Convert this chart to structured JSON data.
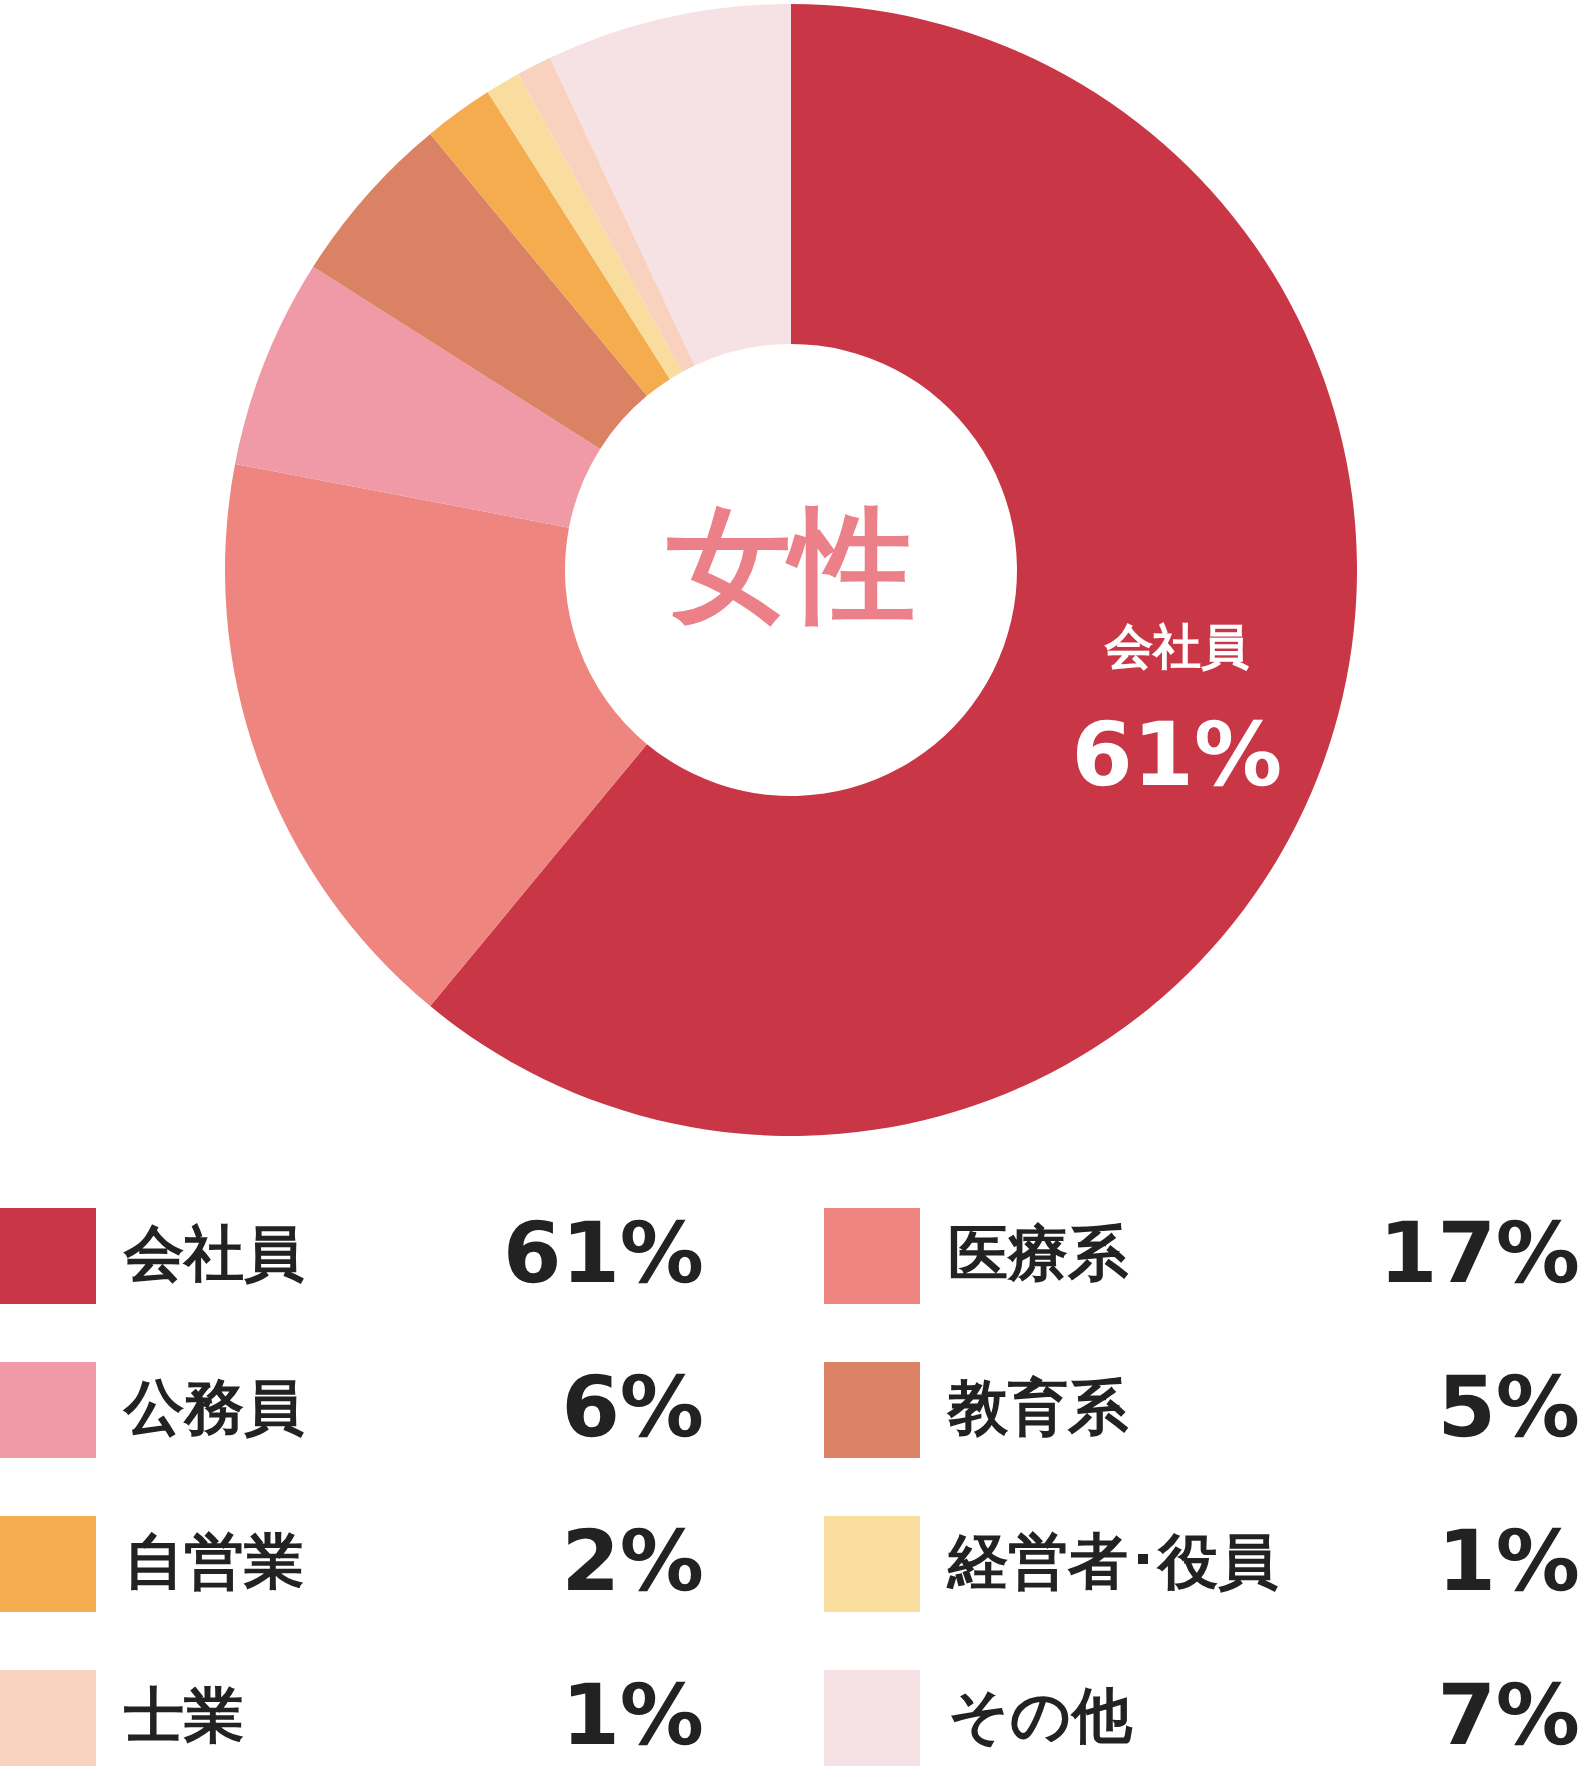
{
  "chart_data": {
    "type": "donut",
    "title": "女性",
    "categories": [
      "会社員",
      "医療系",
      "公務員",
      "教育系",
      "自営業",
      "経営者･役員",
      "士業",
      "その他"
    ],
    "values": [
      61,
      17,
      6,
      5,
      2,
      1,
      1,
      7
    ],
    "value_labels": [
      "61%",
      "17%",
      "6%",
      "5%",
      "2%",
      "1%",
      "1%",
      "7%"
    ],
    "colors": [
      "#c93645",
      "#ee857f",
      "#f09aa8",
      "#dc8264",
      "#f4ac4f",
      "#f8dd9f",
      "#f9d1bf",
      "#f6e1e4"
    ],
    "legend": "bottom"
  }
}
